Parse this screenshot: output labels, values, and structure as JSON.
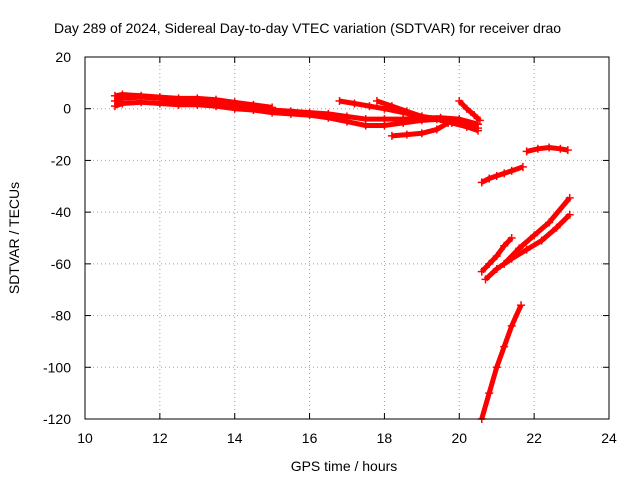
{
  "chart_data": {
    "type": "scatter",
    "title": "Day 289 of 2024, Sidereal Day-to-day VTEC variation (SDTVAR) for receiver drao",
    "xlabel": "GPS time / hours",
    "ylabel": "SDTVAR / TECUs",
    "xlim": [
      10,
      24
    ],
    "ylim": [
      -120,
      20
    ],
    "xticks": [
      10,
      12,
      14,
      16,
      18,
      20,
      22,
      24
    ],
    "yticks": [
      20,
      0,
      -20,
      -40,
      -60,
      -80,
      -100,
      -120
    ],
    "grid": true,
    "color": "#ff0000",
    "series": [
      {
        "x": [
          10.8,
          11.0,
          11.5,
          12.0,
          12.5,
          13.0,
          13.5,
          14.0,
          14.5,
          15.0,
          15.5,
          16.0,
          16.5,
          17.0,
          17.5,
          18.0,
          18.5,
          19.0,
          19.5,
          20.0,
          20.5
        ],
        "y": [
          3,
          4,
          4.5,
          4,
          3,
          3,
          2.5,
          1.5,
          0.5,
          -0.5,
          -1,
          -1.5,
          -2,
          -3,
          -4,
          -4,
          -4,
          -3.5,
          -3.5,
          -4,
          -6
        ]
      },
      {
        "x": [
          10.8,
          11.0,
          11.5,
          12.0,
          12.5,
          13.0,
          13.5,
          14.0,
          14.5,
          15.0,
          15.5,
          16.0,
          16.5,
          17.0,
          17.5,
          18.0,
          18.5,
          19.0,
          19.5,
          20.0,
          20.5
        ],
        "y": [
          1,
          2,
          2.5,
          2,
          1.5,
          1.5,
          1,
          0,
          -0.5,
          -1.5,
          -2,
          -2.5,
          -3.5,
          -5,
          -6.5,
          -6.5,
          -5.5,
          -4.5,
          -4,
          -5,
          -7.5
        ]
      },
      {
        "x": [
          10.8,
          11.0,
          11.5,
          12.0,
          12.5,
          13.0,
          13.5,
          14.0,
          14.5,
          15.0
        ],
        "y": [
          5,
          5.5,
          5,
          4.5,
          4,
          4,
          3.5,
          2.5,
          1.5,
          0.5
        ]
      },
      {
        "x": [
          16.8,
          17.2,
          17.6,
          18.0,
          18.5,
          19.0,
          19.5
        ],
        "y": [
          3,
          2,
          1,
          0,
          -1.5,
          -3,
          -4
        ]
      },
      {
        "x": [
          17.8,
          18.2,
          18.6,
          19.0,
          19.4,
          19.8,
          20.2,
          20.5
        ],
        "y": [
          3,
          1,
          -1,
          -3,
          -4,
          -5.5,
          -7,
          -8.5
        ]
      },
      {
        "x": [
          18.2,
          18.6,
          19.0,
          19.4,
          19.7
        ],
        "y": [
          -10.5,
          -10,
          -9.5,
          -8,
          -5.5
        ]
      },
      {
        "x": [
          20.0,
          20.2,
          20.4,
          20.55
        ],
        "y": [
          3,
          0,
          -2.5,
          -4.5
        ]
      },
      {
        "x": [
          20.6,
          20.8,
          21.0,
          21.2,
          21.4,
          21.7
        ],
        "y": [
          -28.5,
          -27,
          -26,
          -25,
          -24,
          -22.5
        ]
      },
      {
        "x": [
          21.8,
          22.1,
          22.4,
          22.7,
          22.9
        ],
        "y": [
          -16.5,
          -15.5,
          -15,
          -15.5,
          -16
        ]
      },
      {
        "x": [
          20.6,
          20.8,
          21.0,
          21.2,
          21.4
        ],
        "y": [
          -63,
          -60,
          -57,
          -53,
          -50
        ]
      },
      {
        "x": [
          20.7,
          21.0,
          21.4,
          21.8,
          22.2,
          22.6,
          22.95
        ],
        "y": [
          -66,
          -62,
          -58,
          -54.5,
          -51,
          -46,
          -41
        ]
      },
      {
        "x": [
          21.2,
          21.6,
          22.0,
          22.4,
          22.95
        ],
        "y": [
          -60,
          -54,
          -49,
          -44,
          -34.5
        ]
      },
      {
        "x": [
          20.6,
          20.8,
          21.0,
          21.2,
          21.4,
          21.65
        ],
        "y": [
          -120,
          -110,
          -100,
          -92,
          -84,
          -76
        ]
      }
    ]
  }
}
